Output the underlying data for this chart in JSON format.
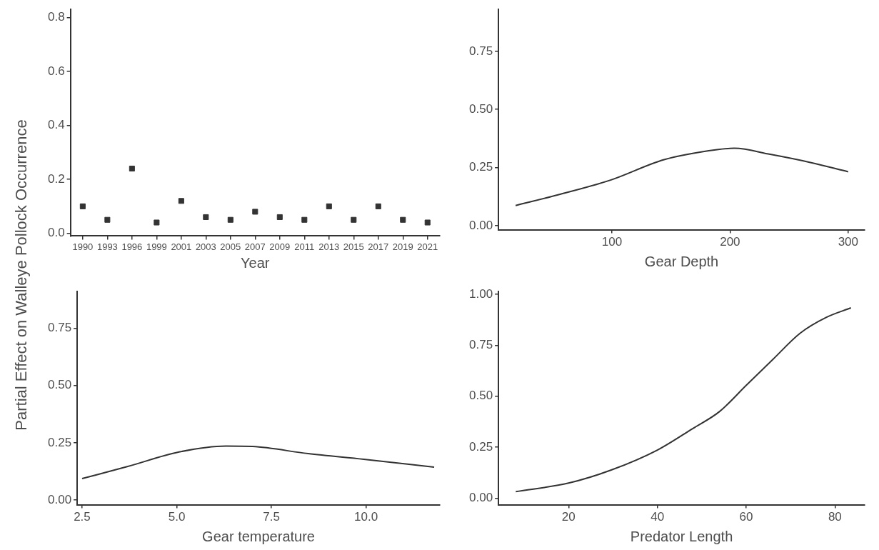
{
  "chart_data": [
    {
      "type": "scatter",
      "xlabel": "Year",
      "ylabel": "Partial Effect on Walleye Pollock Occurrence",
      "categories": [
        "1990",
        "1993",
        "1996",
        "1999",
        "2001",
        "2003",
        "2005",
        "2007",
        "2009",
        "2011",
        "2013",
        "2015",
        "2017",
        "2019",
        "2021"
      ],
      "values": [
        0.1,
        0.05,
        0.24,
        0.04,
        0.12,
        0.06,
        0.05,
        0.08,
        0.06,
        0.05,
        0.1,
        0.05,
        0.1,
        0.05,
        0.04
      ],
      "color": "#333333",
      "marker": "square",
      "ylim": [
        -0.01,
        0.83
      ],
      "yticks": [
        {
          "value": 0,
          "label": "0.0"
        },
        {
          "value": 0.2,
          "label": "0.2"
        },
        {
          "value": 0.4,
          "label": "0.4"
        },
        {
          "value": 0.6,
          "label": "0.6"
        },
        {
          "value": 0.8,
          "label": "0.8"
        }
      ]
    },
    {
      "type": "line",
      "xlabel": "Gear Depth",
      "x": [
        18.5,
        54.4,
        99.3,
        144.2,
        189,
        203.6,
        234,
        268,
        300
      ],
      "values": [
        0.087,
        0.133,
        0.197,
        0.284,
        0.327,
        0.333,
        0.307,
        0.272,
        0.232
      ],
      "color": "#333333",
      "xlim": [
        4,
        314
      ],
      "ylim": [
        -0.017,
        0.93
      ],
      "xticks": [
        100,
        200,
        300
      ],
      "yticks": [
        {
          "value": 0,
          "label": "0.00"
        },
        {
          "value": 0.25,
          "label": "0.25"
        },
        {
          "value": 0.5,
          "label": "0.50"
        },
        {
          "value": 0.75,
          "label": "0.75"
        }
      ]
    },
    {
      "type": "line",
      "xlabel": "Gear temperature",
      "x": [
        2.5,
        3.69,
        5.06,
        6.3,
        7.0,
        8.47,
        9.94,
        11.8
      ],
      "values": [
        0.094,
        0.146,
        0.21,
        0.236,
        0.234,
        0.203,
        0.178,
        0.144
      ],
      "color": "#333333",
      "xlim": [
        2.37,
        11.95
      ],
      "ylim": [
        -0.02,
        0.91
      ],
      "xticks": [
        {
          "value": 2.5,
          "label": "2.5"
        },
        {
          "value": 5,
          "label": "5.0"
        },
        {
          "value": 7.5,
          "label": "7.5"
        },
        {
          "value": 10,
          "label": "10.0"
        }
      ],
      "yticks": [
        {
          "value": 0,
          "label": "0.00"
        },
        {
          "value": 0.25,
          "label": "0.25"
        },
        {
          "value": 0.5,
          "label": "0.50"
        },
        {
          "value": 0.75,
          "label": "0.75"
        }
      ]
    },
    {
      "type": "line",
      "xlabel": "Predator Length",
      "x": [
        8.1,
        20,
        29.6,
        40,
        48,
        54,
        60,
        66,
        72.1,
        78.1,
        83.6
      ],
      "values": [
        0.032,
        0.074,
        0.138,
        0.236,
        0.342,
        0.425,
        0.553,
        0.68,
        0.808,
        0.887,
        0.933
      ],
      "color": "#333333",
      "xlim": [
        4.2,
        86.7
      ],
      "ylim": [
        -0.032,
        1.013
      ],
      "xticks": [
        20,
        40,
        60,
        80
      ],
      "yticks": [
        {
          "value": 0,
          "label": "0.00"
        },
        {
          "value": 0.25,
          "label": "0.25"
        },
        {
          "value": 0.5,
          "label": "0.50"
        },
        {
          "value": 0.75,
          "label": "0.75"
        },
        {
          "value": 1,
          "label": "1.00"
        }
      ]
    }
  ]
}
